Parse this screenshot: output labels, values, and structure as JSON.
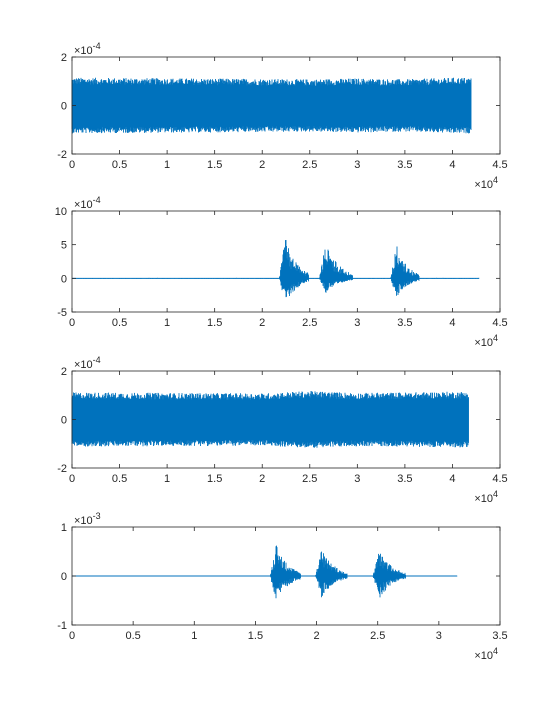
{
  "chart_data": [
    {
      "type": "line",
      "title": "",
      "xlabel": "",
      "ylabel": "",
      "xlim": [
        0,
        45000
      ],
      "ylim": [
        -0.0002,
        0.0002
      ],
      "x_ticks": [
        "0",
        "0.5",
        "1",
        "1.5",
        "2",
        "2.5",
        "3",
        "3.5",
        "4",
        "4.5"
      ],
      "x_tick_values": [
        0,
        5000,
        10000,
        15000,
        20000,
        25000,
        30000,
        35000,
        40000,
        45000
      ],
      "x_exponent_base": "10",
      "x_exponent_power": "4",
      "y_ticks": [
        "-2",
        "0",
        "2"
      ],
      "y_tick_values": [
        -0.0002,
        0,
        0.0002
      ],
      "y_exponent_base": "10",
      "y_exponent_power": "-4",
      "series_color": "#0072BD",
      "signal": {
        "length": 42000,
        "amplitude_envelope": [
          [
            0,
            0.000115
          ],
          [
            20000,
            0.00011
          ],
          [
            25000,
            0.000108
          ],
          [
            30000,
            0.000112
          ],
          [
            35000,
            0.000108
          ],
          [
            40000,
            0.000115
          ],
          [
            42000,
            0.000115
          ]
        ]
      },
      "grid": false
    },
    {
      "type": "line",
      "title": "",
      "xlabel": "",
      "ylabel": "",
      "xlim": [
        0,
        45000
      ],
      "ylim": [
        -0.0005,
        0.001
      ],
      "x_ticks": [
        "0",
        "0.5",
        "1",
        "1.5",
        "2",
        "2.5",
        "3",
        "3.5",
        "4",
        "4.5"
      ],
      "x_tick_values": [
        0,
        5000,
        10000,
        15000,
        20000,
        25000,
        30000,
        35000,
        40000,
        45000
      ],
      "x_exponent_base": "10",
      "x_exponent_power": "4",
      "y_ticks": [
        "-5",
        "0",
        "5",
        "10"
      ],
      "y_tick_values": [
        -0.0005,
        0,
        0.0005,
        0.001
      ],
      "y_exponent_base": "10",
      "y_exponent_power": "-4",
      "series_color": "#0072BD",
      "signal": {
        "length": 42800,
        "bursts": [
          {
            "start": 21800,
            "end": 24900,
            "peak_pos": 0.00062,
            "peak_neg": -0.00042
          },
          {
            "start": 26000,
            "end": 29500,
            "peak_pos": 0.00055,
            "peak_neg": -0.00022
          },
          {
            "start": 33500,
            "end": 36500,
            "peak_pos": 0.00052,
            "peak_neg": -0.0003
          }
        ]
      },
      "grid": false
    },
    {
      "type": "line",
      "title": "",
      "xlabel": "",
      "ylabel": "",
      "xlim": [
        0,
        45000
      ],
      "ylim": [
        -0.0002,
        0.0002
      ],
      "x_ticks": [
        "0",
        "0.5",
        "1",
        "1.5",
        "2",
        "2.5",
        "3",
        "3.5",
        "4",
        "4.5"
      ],
      "x_tick_values": [
        0,
        5000,
        10000,
        15000,
        20000,
        25000,
        30000,
        35000,
        40000,
        45000
      ],
      "x_exponent_base": "10",
      "x_exponent_power": "4",
      "y_ticks": [
        "-2",
        "0",
        "2"
      ],
      "y_tick_values": [
        -0.0002,
        0,
        0.0002
      ],
      "y_exponent_base": "10",
      "y_exponent_power": "-4",
      "series_color": "#0072BD",
      "signal": {
        "length": 41700,
        "amplitude_envelope": [
          [
            0,
            0.000112
          ],
          [
            20000,
            0.000108
          ],
          [
            25000,
            0.000118
          ],
          [
            30000,
            0.00011
          ],
          [
            35000,
            0.000112
          ],
          [
            40000,
            0.000115
          ],
          [
            41700,
            0.000115
          ]
        ]
      },
      "grid": false
    },
    {
      "type": "line",
      "title": "",
      "xlabel": "",
      "ylabel": "",
      "xlim": [
        0,
        35000
      ],
      "ylim": [
        -0.001,
        0.001
      ],
      "x_ticks": [
        "0",
        "0.5",
        "1",
        "1.5",
        "2",
        "2.5",
        "3",
        "3.5"
      ],
      "x_tick_values": [
        0,
        5000,
        10000,
        15000,
        20000,
        25000,
        30000,
        35000
      ],
      "x_exponent_base": "10",
      "x_exponent_power": "4",
      "y_ticks": [
        "-1",
        "0",
        "1"
      ],
      "y_tick_values": [
        -0.001,
        0,
        0.001
      ],
      "y_exponent_base": "10",
      "y_exponent_power": "-3",
      "series_color": "#0072BD",
      "signal": {
        "length": 31500,
        "bursts": [
          {
            "start": 16200,
            "end": 18700,
            "peak_pos": 0.00065,
            "peak_neg": -0.00055
          },
          {
            "start": 19900,
            "end": 22500,
            "peak_pos": 0.00058,
            "peak_neg": -0.00045
          },
          {
            "start": 24600,
            "end": 27300,
            "peak_pos": 0.00055,
            "peak_neg": -0.00048
          }
        ]
      },
      "grid": false
    }
  ]
}
